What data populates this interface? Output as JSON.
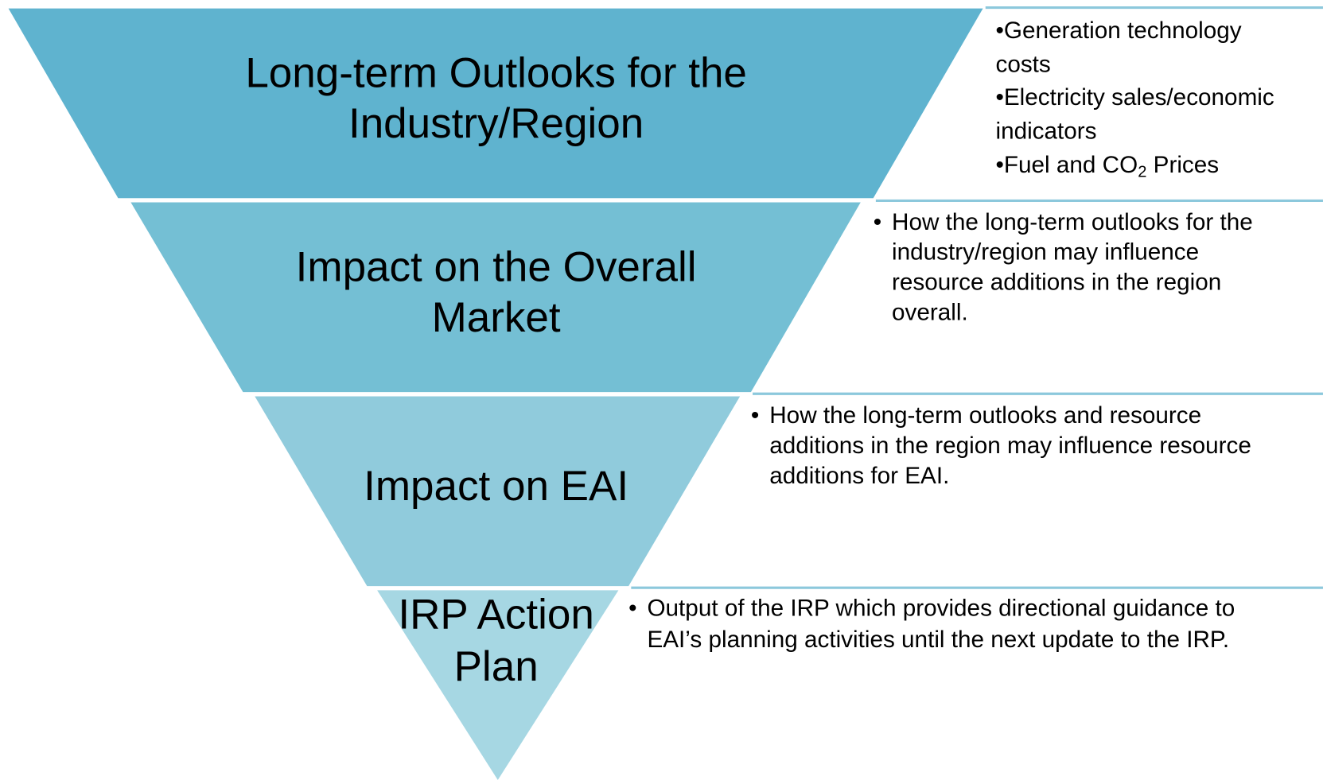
{
  "levels": [
    {
      "title": [
        "Long-term Outlooks for the",
        "Industry/Region"
      ],
      "details": [
        {
          "text": "•Generation technology"
        },
        {
          "text": "costs"
        },
        {
          "text": "•Electricity sales/economic"
        },
        {
          "text": "indicators"
        },
        {
          "text": "•Fuel and CO",
          "sub": "2",
          "after": " Prices"
        }
      ]
    },
    {
      "title": [
        "Impact on the Overall",
        "Market"
      ],
      "bullet": "•",
      "lines": [
        "How the long-term outlooks for the",
        "industry/region may influence",
        "resource additions in the region",
        "overall."
      ]
    },
    {
      "title": [
        "Impact on EAI"
      ],
      "bullet": "•",
      "lines": [
        "How the long-term outlooks and resource",
        "additions in the region may influence resource",
        "additions for EAI."
      ]
    },
    {
      "title": [
        "IRP Action",
        "Plan"
      ],
      "bullet": "•",
      "lines": [
        "Output of the IRP which provides directional guidance to",
        "EAI’s planning activities until the next update to the IRP."
      ]
    }
  ]
}
